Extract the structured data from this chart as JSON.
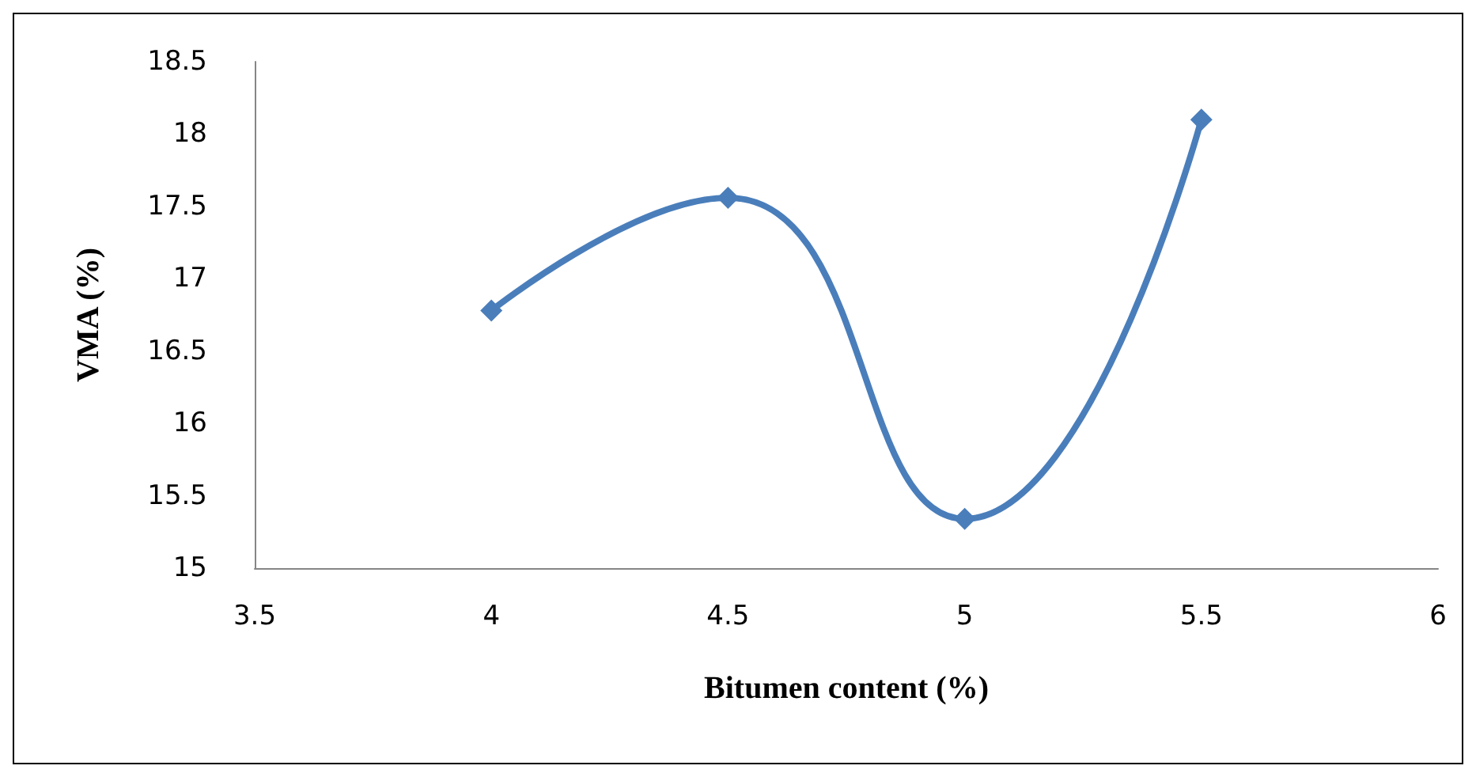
{
  "chart_data": {
    "type": "line",
    "xlabel": "Bitumen content (%)",
    "ylabel": "VMA (%)",
    "x": [
      4,
      4.5,
      5,
      5.5
    ],
    "series": [
      {
        "color": "#4a7ebb",
        "values": [
          16.78,
          17.56,
          15.34,
          18.1
        ]
      }
    ],
    "xlim": [
      3.5,
      6
    ],
    "xticks": [
      3.5,
      4,
      4.5,
      5,
      5.5,
      6
    ],
    "ylim": [
      15,
      18.5
    ],
    "yticks": [
      15,
      15.5,
      16,
      16.5,
      17,
      17.5,
      18,
      18.5
    ],
    "grid": false,
    "marker": "diamond",
    "line_style": "solid"
  }
}
